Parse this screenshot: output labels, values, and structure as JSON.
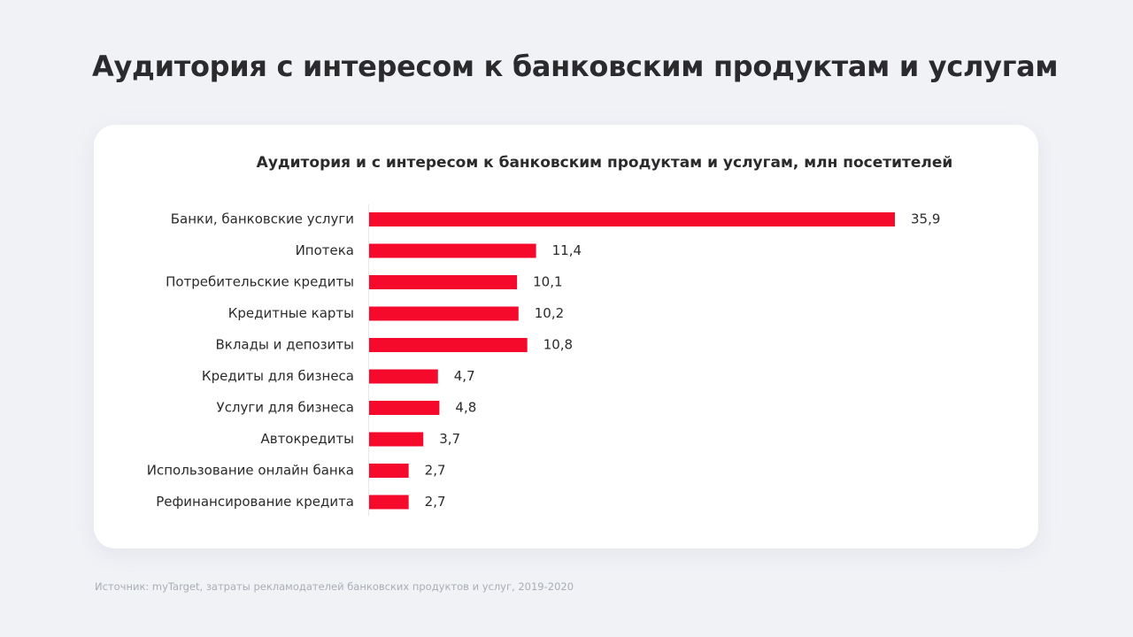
{
  "header": {
    "title": "Аудитория с интересом к банковским продуктам и услугам"
  },
  "chart_data": {
    "type": "bar",
    "orientation": "horizontal",
    "title": "Аудитория и с интересом к банковским продуктам и услугам, млн посетителей",
    "categories": [
      "Банки, банковские услуги",
      "Ипотека",
      "Потребительские кредиты",
      "Кредитные карты",
      "Вклады и депозиты",
      "Кредиты для бизнеса",
      "Услуги для бизнеса",
      "Автокредиты",
      "Использование онлайн банка",
      "Рефинансирование кредита"
    ],
    "values": [
      35.9,
      11.4,
      10.1,
      10.2,
      10.8,
      4.7,
      4.8,
      3.7,
      2.7,
      2.7
    ],
    "value_labels": [
      "35,9",
      "11,4",
      "10,1",
      "10,2",
      "10,8",
      "4,7",
      "4,8",
      "3,7",
      "2,7",
      "2,7"
    ],
    "color": "#f50a2b"
  },
  "footer": {
    "source": "Источник: myTarget, затраты рекламодателей банковских продуктов и услуг, 2019-2020"
  }
}
